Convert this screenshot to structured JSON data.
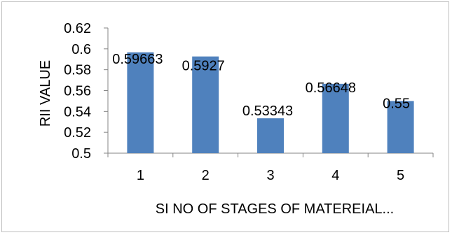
{
  "chart_data": {
    "type": "bar",
    "categories": [
      "1",
      "2",
      "3",
      "4",
      "5"
    ],
    "values": [
      0.59663,
      0.5927,
      0.53343,
      0.56648,
      0.55
    ],
    "data_labels": [
      "0.59663",
      "0.5927",
      "0.53343",
      "0.56648",
      "0.55"
    ],
    "title": "",
    "xlabel": "SI NO OF STAGES OF MATEREIAL...",
    "ylabel": "RII VALUE",
    "ylim": [
      0.5,
      0.62
    ],
    "y_ticks": [
      0.5,
      0.52,
      0.54,
      0.56,
      0.58,
      0.6,
      0.62
    ],
    "y_tick_labels": [
      "0.5",
      "0.52",
      "0.54",
      "0.56",
      "0.58",
      "0.6",
      "0.62"
    ],
    "grid": false,
    "legend": "none",
    "bar_color": "#4f81bd",
    "axis_color": "#868686"
  }
}
